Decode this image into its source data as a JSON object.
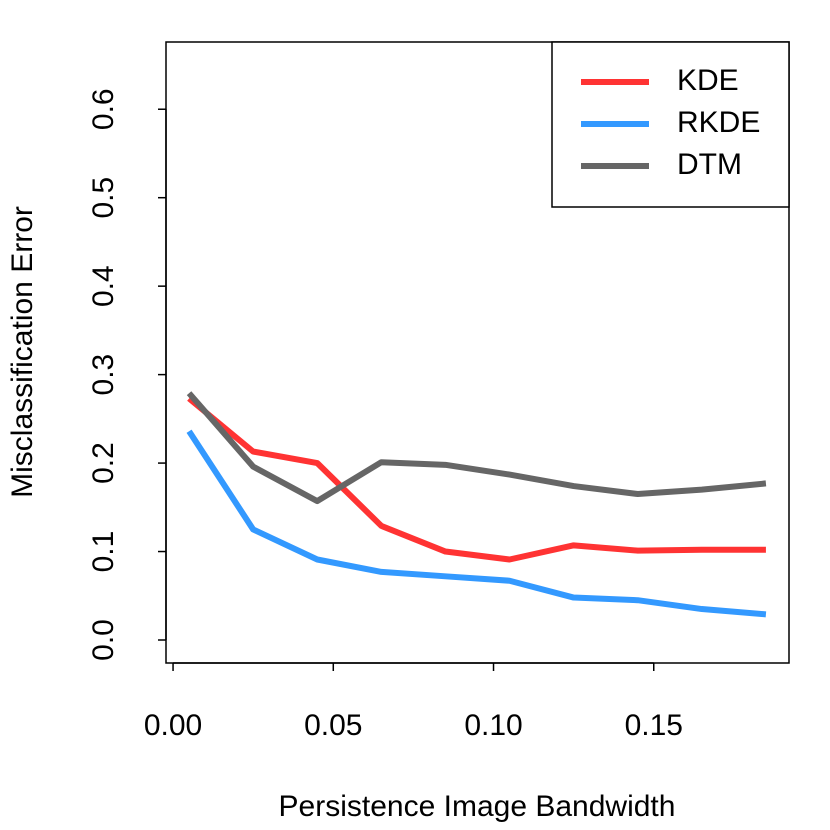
{
  "chart_data": {
    "type": "line",
    "x_label": "Persistence Image Bandwidth",
    "y_label": "Misclassification Error",
    "x": [
      0.005,
      0.025,
      0.045,
      0.065,
      0.085,
      0.105,
      0.125,
      0.145,
      0.165,
      0.185
    ],
    "series": [
      {
        "name": "KDE",
        "color": "#ff3333",
        "values": [
          0.273,
          0.213,
          0.2,
          0.129,
          0.1,
          0.091,
          0.107,
          0.101,
          0.102,
          0.102
        ]
      },
      {
        "name": "RKDE",
        "color": "#3399ff",
        "values": [
          0.236,
          0.125,
          0.091,
          0.077,
          0.072,
          0.067,
          0.048,
          0.045,
          0.035,
          0.029
        ]
      },
      {
        "name": "DTM",
        "color": "#666666",
        "values": [
          0.279,
          0.196,
          0.157,
          0.201,
          0.198,
          0.187,
          0.174,
          0.165,
          0.17,
          0.177
        ]
      }
    ],
    "xlim": [
      -0.0022,
      0.1922
    ],
    "ylim": [
      -0.026,
      0.676
    ],
    "xticks": [
      {
        "value": 0,
        "label": "0.00"
      },
      0.05,
      {
        "value": 0.1,
        "label": "0.10"
      },
      0.15
    ],
    "yticks": [
      {
        "value": 0,
        "label": "0.0"
      },
      0.1,
      0.2,
      0.3,
      0.4,
      0.5,
      0.6
    ],
    "legend": "topright",
    "grid": false
  }
}
